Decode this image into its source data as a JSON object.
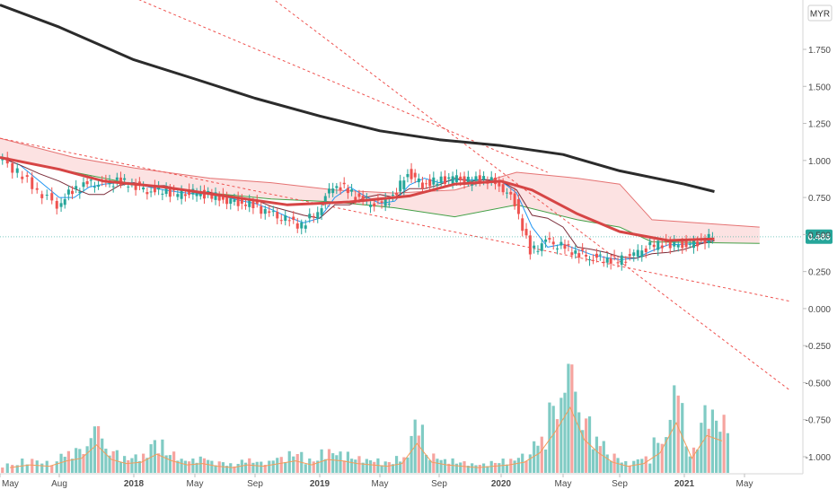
{
  "chart_data": {
    "type": "candlestick",
    "currency": "MYR",
    "last_price": "0.485",
    "ylim": [
      -1.1,
      2.05
    ],
    "y_ticks": [
      "1.750",
      "1.500",
      "1.250",
      "1.000",
      "0.750",
      "0.500",
      "0.250",
      "0.000",
      "-0.250",
      "-0.500",
      "-0.750",
      "-1.000"
    ],
    "y_tick_values": [
      1.75,
      1.5,
      1.25,
      1.0,
      0.75,
      0.5,
      0.25,
      0.0,
      -0.25,
      -0.5,
      -0.75,
      -1.0
    ],
    "x_ticks": [
      "May",
      "Aug",
      "2018",
      "May",
      "Sep",
      "2019",
      "May",
      "Sep",
      "2020",
      "May",
      "Sep",
      "2021",
      "May"
    ],
    "x_tick_dates": [
      "2017-05",
      "2017-08",
      "2018-01",
      "2018-05",
      "2018-09",
      "2019-01",
      "2019-05",
      "2019-09",
      "2020-01",
      "2020-05",
      "2020-09",
      "2021-01",
      "2021-05"
    ],
    "x_tick_style": [
      "normal",
      "normal",
      "bold",
      "normal",
      "normal",
      "bold",
      "normal",
      "normal",
      "bold",
      "normal",
      "normal",
      "bold",
      "normal"
    ],
    "price_series": [
      {
        "date": "2017-05",
        "value": 1.02
      },
      {
        "date": "2017-06",
        "value": 0.92
      },
      {
        "date": "2017-07",
        "value": 0.8
      },
      {
        "date": "2017-08",
        "value": 0.7
      },
      {
        "date": "2017-09",
        "value": 0.8
      },
      {
        "date": "2017-10",
        "value": 0.84
      },
      {
        "date": "2017-11",
        "value": 0.84
      },
      {
        "date": "2017-12",
        "value": 0.86
      },
      {
        "date": "2018-01",
        "value": 0.84
      },
      {
        "date": "2018-02",
        "value": 0.8
      },
      {
        "date": "2018-03",
        "value": 0.8
      },
      {
        "date": "2018-04",
        "value": 0.77
      },
      {
        "date": "2018-05",
        "value": 0.78
      },
      {
        "date": "2018-06",
        "value": 0.77
      },
      {
        "date": "2018-07",
        "value": 0.74
      },
      {
        "date": "2018-08",
        "value": 0.72
      },
      {
        "date": "2018-09",
        "value": 0.7
      },
      {
        "date": "2018-10",
        "value": 0.64
      },
      {
        "date": "2018-11",
        "value": 0.6
      },
      {
        "date": "2018-12",
        "value": 0.56
      },
      {
        "date": "2019-01",
        "value": 0.66
      },
      {
        "date": "2019-02",
        "value": 0.84
      },
      {
        "date": "2019-03",
        "value": 0.8
      },
      {
        "date": "2019-04",
        "value": 0.72
      },
      {
        "date": "2019-05",
        "value": 0.7
      },
      {
        "date": "2019-06",
        "value": 0.75
      },
      {
        "date": "2019-07",
        "value": 0.92
      },
      {
        "date": "2019-08",
        "value": 0.84
      },
      {
        "date": "2019-09",
        "value": 0.86
      },
      {
        "date": "2019-10",
        "value": 0.88
      },
      {
        "date": "2019-11",
        "value": 0.86
      },
      {
        "date": "2019-12",
        "value": 0.88
      },
      {
        "date": "2020-01",
        "value": 0.84
      },
      {
        "date": "2020-02",
        "value": 0.72
      },
      {
        "date": "2020-03",
        "value": 0.38
      },
      {
        "date": "2020-04",
        "value": 0.45
      },
      {
        "date": "2020-05",
        "value": 0.42
      },
      {
        "date": "2020-06",
        "value": 0.38
      },
      {
        "date": "2020-07",
        "value": 0.35
      },
      {
        "date": "2020-08",
        "value": 0.34
      },
      {
        "date": "2020-09",
        "value": 0.32
      },
      {
        "date": "2020-10",
        "value": 0.36
      },
      {
        "date": "2020-11",
        "value": 0.42
      },
      {
        "date": "2020-12",
        "value": 0.44
      },
      {
        "date": "2021-01",
        "value": 0.43
      },
      {
        "date": "2021-02",
        "value": 0.45
      },
      {
        "date": "2021-03",
        "value": 0.485
      }
    ],
    "sma_200": [
      {
        "date": "2017-05",
        "value": 2.05
      },
      {
        "date": "2017-08",
        "value": 1.9
      },
      {
        "date": "2018-01",
        "value": 1.68
      },
      {
        "date": "2018-05",
        "value": 1.55
      },
      {
        "date": "2018-09",
        "value": 1.42
      },
      {
        "date": "2019-01",
        "value": 1.3
      },
      {
        "date": "2019-05",
        "value": 1.2
      },
      {
        "date": "2019-09",
        "value": 1.14
      },
      {
        "date": "2020-01",
        "value": 1.1
      },
      {
        "date": "2020-05",
        "value": 1.04
      },
      {
        "date": "2020-09",
        "value": 0.93
      },
      {
        "date": "2021-01",
        "value": 0.84
      },
      {
        "date": "2021-03",
        "value": 0.79
      }
    ],
    "sma_50": [
      {
        "date": "2017-05",
        "value": 1.02
      },
      {
        "date": "2017-08",
        "value": 0.94
      },
      {
        "date": "2017-11",
        "value": 0.86
      },
      {
        "date": "2018-03",
        "value": 0.82
      },
      {
        "date": "2018-07",
        "value": 0.76
      },
      {
        "date": "2018-11",
        "value": 0.7
      },
      {
        "date": "2019-03",
        "value": 0.72
      },
      {
        "date": "2019-07",
        "value": 0.76
      },
      {
        "date": "2019-10",
        "value": 0.84
      },
      {
        "date": "2020-01",
        "value": 0.86
      },
      {
        "date": "2020-03",
        "value": 0.8
      },
      {
        "date": "2020-06",
        "value": 0.64
      },
      {
        "date": "2020-09",
        "value": 0.52
      },
      {
        "date": "2020-12",
        "value": 0.46
      },
      {
        "date": "2021-03",
        "value": 0.47
      }
    ],
    "cloud_upper": [
      {
        "date": "2017-05",
        "value": 1.15
      },
      {
        "date": "2017-09",
        "value": 1.02
      },
      {
        "date": "2018-01",
        "value": 0.95
      },
      {
        "date": "2018-06",
        "value": 0.88
      },
      {
        "date": "2018-10",
        "value": 0.85
      },
      {
        "date": "2019-02",
        "value": 0.8
      },
      {
        "date": "2019-06",
        "value": 0.78
      },
      {
        "date": "2019-10",
        "value": 0.8
      },
      {
        "date": "2020-02",
        "value": 0.92
      },
      {
        "date": "2020-06",
        "value": 0.88
      },
      {
        "date": "2020-09",
        "value": 0.84
      },
      {
        "date": "2020-11",
        "value": 0.6
      },
      {
        "date": "2021-06",
        "value": 0.55
      }
    ],
    "cloud_lower": [
      {
        "date": "2017-05",
        "value": 1.02
      },
      {
        "date": "2017-09",
        "value": 0.92
      },
      {
        "date": "2018-01",
        "value": 0.84
      },
      {
        "date": "2018-06",
        "value": 0.78
      },
      {
        "date": "2018-10",
        "value": 0.74
      },
      {
        "date": "2019-02",
        "value": 0.72
      },
      {
        "date": "2019-06",
        "value": 0.68
      },
      {
        "date": "2019-10",
        "value": 0.62
      },
      {
        "date": "2020-02",
        "value": 0.7
      },
      {
        "date": "2020-06",
        "value": 0.6
      },
      {
        "date": "2020-09",
        "value": 0.55
      },
      {
        "date": "2020-11",
        "value": 0.45
      },
      {
        "date": "2021-06",
        "value": 0.44
      }
    ],
    "trendlines": [
      {
        "start": {
          "date": "2017-05",
          "value": 1.15
        },
        "end": {
          "date": "2021-08",
          "value": 0.05
        }
      },
      {
        "start": {
          "date": "2018-10",
          "value": 2.1
        },
        "end": {
          "date": "2021-08",
          "value": -0.55
        }
      },
      {
        "start": {
          "date": "2018-01",
          "value": 2.1
        },
        "end": {
          "date": "2020-04",
          "value": 0.92
        }
      }
    ],
    "volume_series": [
      {
        "date": "2017-05",
        "value": 0.08
      },
      {
        "date": "2017-06",
        "value": 0.12
      },
      {
        "date": "2017-07",
        "value": 0.1
      },
      {
        "date": "2017-08",
        "value": 0.18
      },
      {
        "date": "2017-09",
        "value": 0.22
      },
      {
        "date": "2017-10",
        "value": 0.42
      },
      {
        "date": "2017-11",
        "value": 0.2
      },
      {
        "date": "2017-12",
        "value": 0.14
      },
      {
        "date": "2018-01",
        "value": 0.16
      },
      {
        "date": "2018-02",
        "value": 0.28
      },
      {
        "date": "2018-03",
        "value": 0.18
      },
      {
        "date": "2018-04",
        "value": 0.12
      },
      {
        "date": "2018-05",
        "value": 0.14
      },
      {
        "date": "2018-06",
        "value": 0.1
      },
      {
        "date": "2018-07",
        "value": 0.08
      },
      {
        "date": "2018-08",
        "value": 0.12
      },
      {
        "date": "2018-09",
        "value": 0.1
      },
      {
        "date": "2018-10",
        "value": 0.14
      },
      {
        "date": "2018-11",
        "value": 0.18
      },
      {
        "date": "2018-12",
        "value": 0.12
      },
      {
        "date": "2019-01",
        "value": 0.2
      },
      {
        "date": "2019-02",
        "value": 0.18
      },
      {
        "date": "2019-03",
        "value": 0.14
      },
      {
        "date": "2019-04",
        "value": 0.12
      },
      {
        "date": "2019-05",
        "value": 0.1
      },
      {
        "date": "2019-06",
        "value": 0.14
      },
      {
        "date": "2019-07",
        "value": 0.44
      },
      {
        "date": "2019-08",
        "value": 0.16
      },
      {
        "date": "2019-09",
        "value": 0.12
      },
      {
        "date": "2019-10",
        "value": 0.1
      },
      {
        "date": "2019-11",
        "value": 0.08
      },
      {
        "date": "2019-12",
        "value": 0.1
      },
      {
        "date": "2020-01",
        "value": 0.12
      },
      {
        "date": "2020-02",
        "value": 0.16
      },
      {
        "date": "2020-03",
        "value": 0.3
      },
      {
        "date": "2020-04",
        "value": 0.62
      },
      {
        "date": "2020-05",
        "value": 0.98
      },
      {
        "date": "2020-06",
        "value": 0.5
      },
      {
        "date": "2020-07",
        "value": 0.3
      },
      {
        "date": "2020-08",
        "value": 0.16
      },
      {
        "date": "2020-09",
        "value": 0.1
      },
      {
        "date": "2020-10",
        "value": 0.14
      },
      {
        "date": "2020-11",
        "value": 0.3
      },
      {
        "date": "2020-12",
        "value": 0.75
      },
      {
        "date": "2021-01",
        "value": 0.22
      },
      {
        "date": "2021-02",
        "value": 0.56
      },
      {
        "date": "2021-03",
        "value": 0.48
      }
    ],
    "grid": false,
    "colors": {
      "up": "#26a69a",
      "down": "#ef5350",
      "sma_200": "#2b2b2b",
      "sma_50": "#d64545",
      "conversion": "#2196f3",
      "base": "#7b2d3a",
      "cloud_fill": "#fbd8d8",
      "cloud_upper": "#e57373",
      "cloud_lower": "#43a047",
      "trendline": "#ef5350",
      "price_line": "#26a69a",
      "last_price_bg": "#26a69a",
      "volume_up": "#80cbc4",
      "volume_down": "#f6a49f",
      "volume_ma": "#f39c5a"
    }
  }
}
